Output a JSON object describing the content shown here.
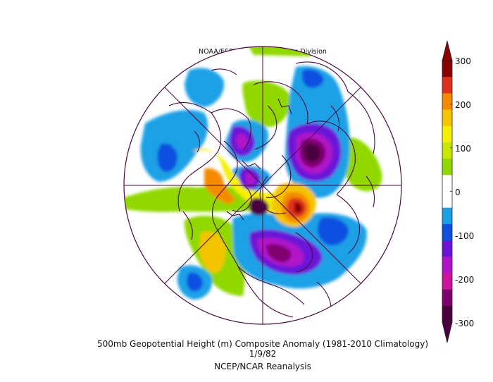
{
  "figure": {
    "credit": "NOAA/ESRL Physical Sciences Division",
    "title": "500mb Geopotential Height (m) Composite Anomaly (1981-2010 Climatology)",
    "date": "1/9/82",
    "source": "NCEP/NCAR Reanalysis"
  },
  "colorbar": {
    "labels": [
      "300",
      "200",
      "100",
      "0",
      "-100",
      "-200",
      "-300"
    ],
    "colors": [
      "#8b0000",
      "#e0301e",
      "#f58a00",
      "#f5c400",
      "#f5f000",
      "#c8e600",
      "#90d800",
      "#ffffff",
      "#ffffff",
      "#1aa0e6",
      "#1050e0",
      "#6a14d8",
      "#b014c8",
      "#cc14a0",
      "#800070",
      "#4a0040"
    ]
  },
  "map": {
    "projection": "polar-stereographic",
    "hemisphere": "northern",
    "coastline_color": "#4a0a40"
  }
}
